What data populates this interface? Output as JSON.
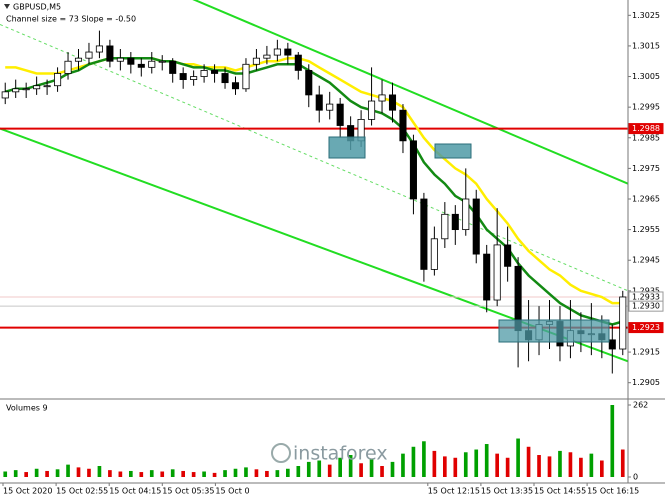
{
  "chart_data": {
    "type": "candlestick",
    "title": "GBPUSD,M5",
    "subtitle": "Channel size = 73 Slope = -0.50",
    "ylim": [
      1.29,
      1.303
    ],
    "yticks": [
      1.3025,
      1.3015,
      1.3005,
      1.2995,
      1.2985,
      1.2975,
      1.2965,
      1.2955,
      1.2945,
      1.2935,
      1.2915,
      1.2905
    ],
    "x_labels": [
      "15 Oct 2020",
      "15 Oct 02:55",
      "15 Oct 04:15",
      "15 Oct 05:35",
      "15 Oct 0",
      null,
      null,
      null,
      "15 Oct 12:15",
      "15 Oct 13:35",
      "15 Oct 14:55",
      "15 Oct 16:15"
    ],
    "ohlc": {
      "open": [
        1.2998,
        1.3,
        1.3001,
        1.3001,
        1.3002,
        1.3002,
        1.3006,
        1.301,
        1.3011,
        1.3013,
        1.3015,
        1.301,
        1.3011,
        1.3009,
        1.3008,
        1.301,
        1.301,
        1.3006,
        1.3004,
        1.3005,
        1.3007,
        1.3006,
        1.3003,
        1.3001,
        1.3009,
        1.3011,
        1.3012,
        1.3014,
        1.3012,
        1.3007,
        1.2999,
        1.2994,
        1.2996,
        1.2989,
        1.2984,
        1.2991,
        1.2997,
        1.2999,
        1.2994,
        1.2984,
        1.2965,
        1.2942,
        1.2952,
        1.296,
        1.2955,
        1.2965,
        1.2947,
        1.2932,
        1.295,
        1.2943,
        1.2922,
        1.2919,
        1.2924,
        1.2925,
        1.2917,
        1.2922,
        1.2921,
        1.2921,
        1.2919,
        1.2916
      ],
      "high": [
        1.3003,
        1.3004,
        1.3003,
        1.3005,
        1.3004,
        1.3008,
        1.3013,
        1.3014,
        1.3016,
        1.302,
        1.3017,
        1.3014,
        1.3013,
        1.3011,
        1.3013,
        1.3012,
        1.3011,
        1.3008,
        1.3007,
        1.3009,
        1.3009,
        1.3008,
        1.3005,
        1.3011,
        1.3014,
        1.3015,
        1.3017,
        1.3016,
        1.3013,
        1.3009,
        1.3002,
        1.3,
        1.2998,
        1.2992,
        1.2994,
        1.3008,
        1.3004,
        1.3003,
        1.2996,
        1.2986,
        1.2967,
        1.2956,
        1.2964,
        1.2963,
        1.2975,
        1.2968,
        1.295,
        1.2962,
        1.2956,
        1.2946,
        1.2932,
        1.293,
        1.2932,
        1.293,
        1.2932,
        1.2928,
        1.2931,
        1.2927,
        1.2924,
        1.2935
      ],
      "low": [
        1.2996,
        1.2998,
        1.2998,
        1.2999,
        1.2999,
        1.3,
        1.3004,
        1.3007,
        1.3009,
        1.3011,
        1.3008,
        1.3007,
        1.3006,
        1.3005,
        1.3006,
        1.3007,
        1.3003,
        1.3001,
        1.3002,
        1.3003,
        1.3003,
        1.3001,
        1.2999,
        1.3,
        1.3007,
        1.3009,
        1.301,
        1.3009,
        1.3004,
        1.2995,
        1.299,
        1.2991,
        1.2985,
        1.2981,
        1.2982,
        1.2989,
        1.2993,
        1.299,
        1.298,
        1.296,
        1.2938,
        1.294,
        1.2949,
        1.295,
        1.2953,
        1.2944,
        1.2928,
        1.293,
        1.2938,
        1.291,
        1.2912,
        1.2914,
        1.2916,
        1.2912,
        1.2913,
        1.2915,
        1.2914,
        1.2913,
        1.2908,
        1.2914
      ],
      "close": [
        1.3,
        1.3001,
        1.3001,
        1.3002,
        1.3002,
        1.3006,
        1.301,
        1.3011,
        1.3013,
        1.3015,
        1.301,
        1.3011,
        1.3009,
        1.3008,
        1.301,
        1.301,
        1.3006,
        1.3004,
        1.3005,
        1.3007,
        1.3006,
        1.3003,
        1.3001,
        1.3009,
        1.3011,
        1.3012,
        1.3014,
        1.3012,
        1.3007,
        1.2999,
        1.2994,
        1.2996,
        1.2989,
        1.2984,
        1.2991,
        1.2997,
        1.2999,
        1.2994,
        1.2984,
        1.2965,
        1.2942,
        1.2952,
        1.296,
        1.2955,
        1.2965,
        1.2947,
        1.2932,
        1.295,
        1.2943,
        1.2922,
        1.2919,
        1.2924,
        1.2925,
        1.2917,
        1.2922,
        1.2921,
        1.2921,
        1.2919,
        1.2916,
        1.2933
      ]
    },
    "ma": [
      {
        "color": "#ffee00",
        "values": [
          1.3008,
          1.3008,
          1.3007,
          1.3006,
          1.3006,
          1.3006,
          1.3007,
          1.3008,
          1.3009,
          1.301,
          1.3011,
          1.3011,
          1.3011,
          1.3011,
          1.3011,
          1.301,
          1.301,
          1.3009,
          1.3009,
          1.3008,
          1.3008,
          1.3008,
          1.3007,
          1.3008,
          1.3009,
          1.301,
          1.301,
          1.3011,
          1.3011,
          1.301,
          1.3008,
          1.3006,
          1.3004,
          1.3002,
          1.3,
          1.2999,
          1.2998,
          1.2997,
          1.2995,
          1.299,
          1.2985,
          1.2981,
          1.2978,
          1.2975,
          1.2973,
          1.297,
          1.2965,
          1.2961,
          1.2957,
          1.2952,
          1.2948,
          1.2945,
          1.2942,
          1.294,
          1.2937,
          1.2935,
          1.2934,
          1.2933,
          1.2931,
          1.2931
        ]
      },
      {
        "color": "#138a13",
        "values": [
          1.3,
          1.3001,
          1.3001,
          1.3002,
          1.3003,
          1.3004,
          1.3006,
          1.3007,
          1.3009,
          1.301,
          1.3011,
          1.3011,
          1.3011,
          1.3011,
          1.3011,
          1.301,
          1.301,
          1.3009,
          1.3008,
          1.3008,
          1.3007,
          1.3007,
          1.3006,
          1.3006,
          1.3007,
          1.3008,
          1.3009,
          1.3009,
          1.3009,
          1.3007,
          1.3005,
          1.3003,
          1.3,
          1.2997,
          1.2995,
          1.2994,
          1.2993,
          1.2991,
          1.2988,
          1.2983,
          1.2977,
          1.2973,
          1.297,
          1.2966,
          1.2964,
          1.296,
          1.2955,
          1.2952,
          1.2949,
          1.2944,
          1.294,
          1.2937,
          1.2934,
          1.2931,
          1.2929,
          1.2927,
          1.2926,
          1.2925,
          1.2924,
          1.2925
        ]
      }
    ],
    "channel": [
      {
        "start": 1.3057,
        "end": 1.297,
        "color": "#22dd22",
        "dashed": false
      },
      {
        "start": 1.3022,
        "end": 1.2935,
        "color": "#66dd66",
        "dashed": true
      },
      {
        "start": 1.2988,
        "end": 1.2912,
        "color": "#22dd22",
        "dashed": false
      }
    ],
    "levels": [
      {
        "price": 1.2988,
        "color": "#e00000"
      },
      {
        "price": 1.2933,
        "color": "#f0c8c8"
      },
      {
        "price": {
          "value": 1.293,
          "label": "1.2930"
        },
        "color": "#c8c8c8"
      },
      {
        "price": 1.2923,
        "color": "#e00000"
      }
    ],
    "volume": {
      "title": "Volumes 9",
      "ylim": [
        0,
        262
      ],
      "yticks": [
        262,
        0
      ],
      "up_color": "#00a000",
      "down_color": "#e00000",
      "values": [
        20,
        25,
        18,
        30,
        22,
        28,
        45,
        35,
        30,
        40,
        25,
        20,
        22,
        18,
        25,
        20,
        28,
        22,
        18,
        20,
        15,
        25,
        30,
        35,
        28,
        22,
        25,
        30,
        40,
        55,
        60,
        45,
        70,
        80,
        50,
        65,
        40,
        55,
        85,
        110,
        130,
        95,
        75,
        70,
        90,
        100,
        120,
        85,
        70,
        140,
        110,
        80,
        75,
        95,
        90,
        70,
        85,
        60,
        262,
        100
      ]
    },
    "watermark": "instaforex"
  }
}
